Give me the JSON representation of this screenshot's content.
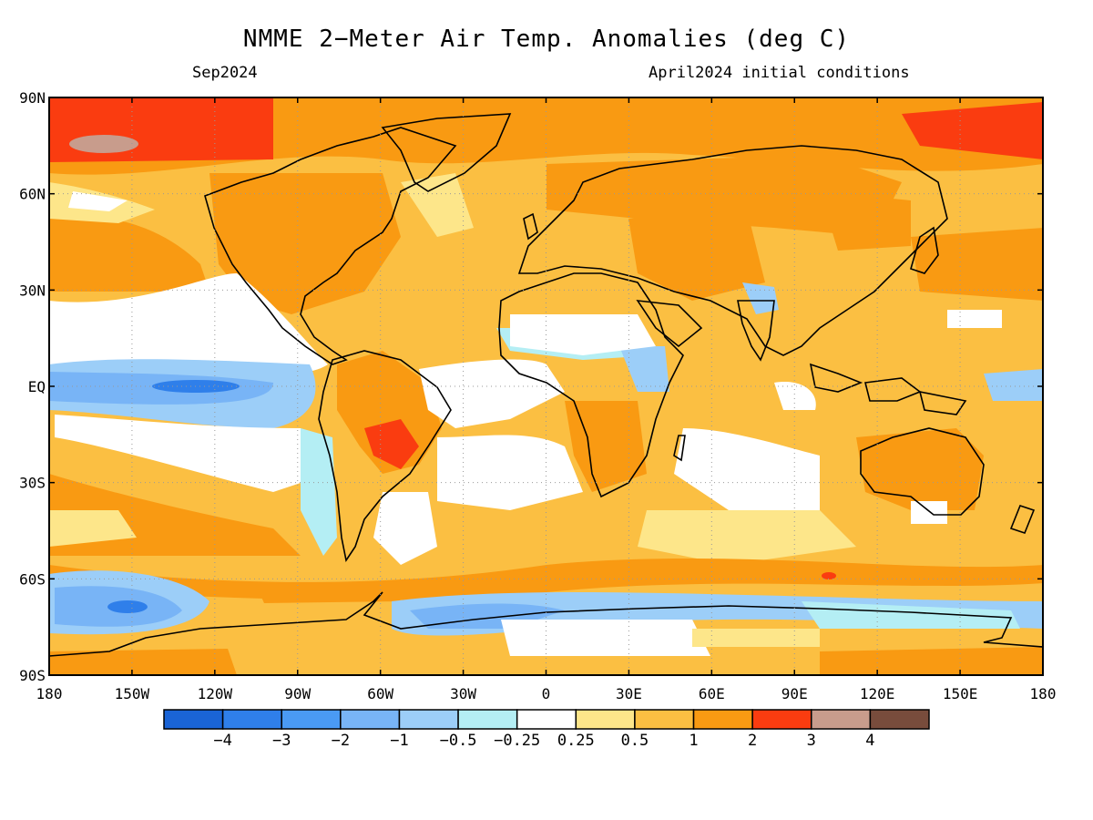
{
  "title": "NMME 2−Meter Air Temp. Anomalies (deg C)",
  "subtitle_left": "Sep2024",
  "subtitle_right": "April2024 initial conditions",
  "map": {
    "lat_labels": [
      "90N",
      "60N",
      "30N",
      "EQ",
      "30S",
      "60S",
      "90S"
    ],
    "lat_values": [
      90,
      60,
      30,
      0,
      -30,
      -60,
      -90
    ],
    "lon_labels": [
      "180",
      "150W",
      "120W",
      "90W",
      "60W",
      "30W",
      "0",
      "30E",
      "60E",
      "90E",
      "120E",
      "150E",
      "180"
    ],
    "lon_values": [
      -180,
      -150,
      -120,
      -90,
      -60,
      -30,
      0,
      30,
      60,
      90,
      120,
      150,
      180
    ]
  },
  "colorbar": {
    "labels": [
      "−4",
      "−3",
      "−2",
      "−1",
      "−0.5",
      "−0.25",
      "0.25",
      "0.5",
      "1",
      "2",
      "3",
      "4"
    ],
    "colors": [
      "#1a64d6",
      "#2f7fea",
      "#4a9af4",
      "#78b4f6",
      "#9ccef8",
      "#b4eef4",
      "#ffffff",
      "#fde68a",
      "#fbbf42",
      "#f99a12",
      "#fa3c10",
      "#c89c8c",
      "#784c3c"
    ]
  }
}
